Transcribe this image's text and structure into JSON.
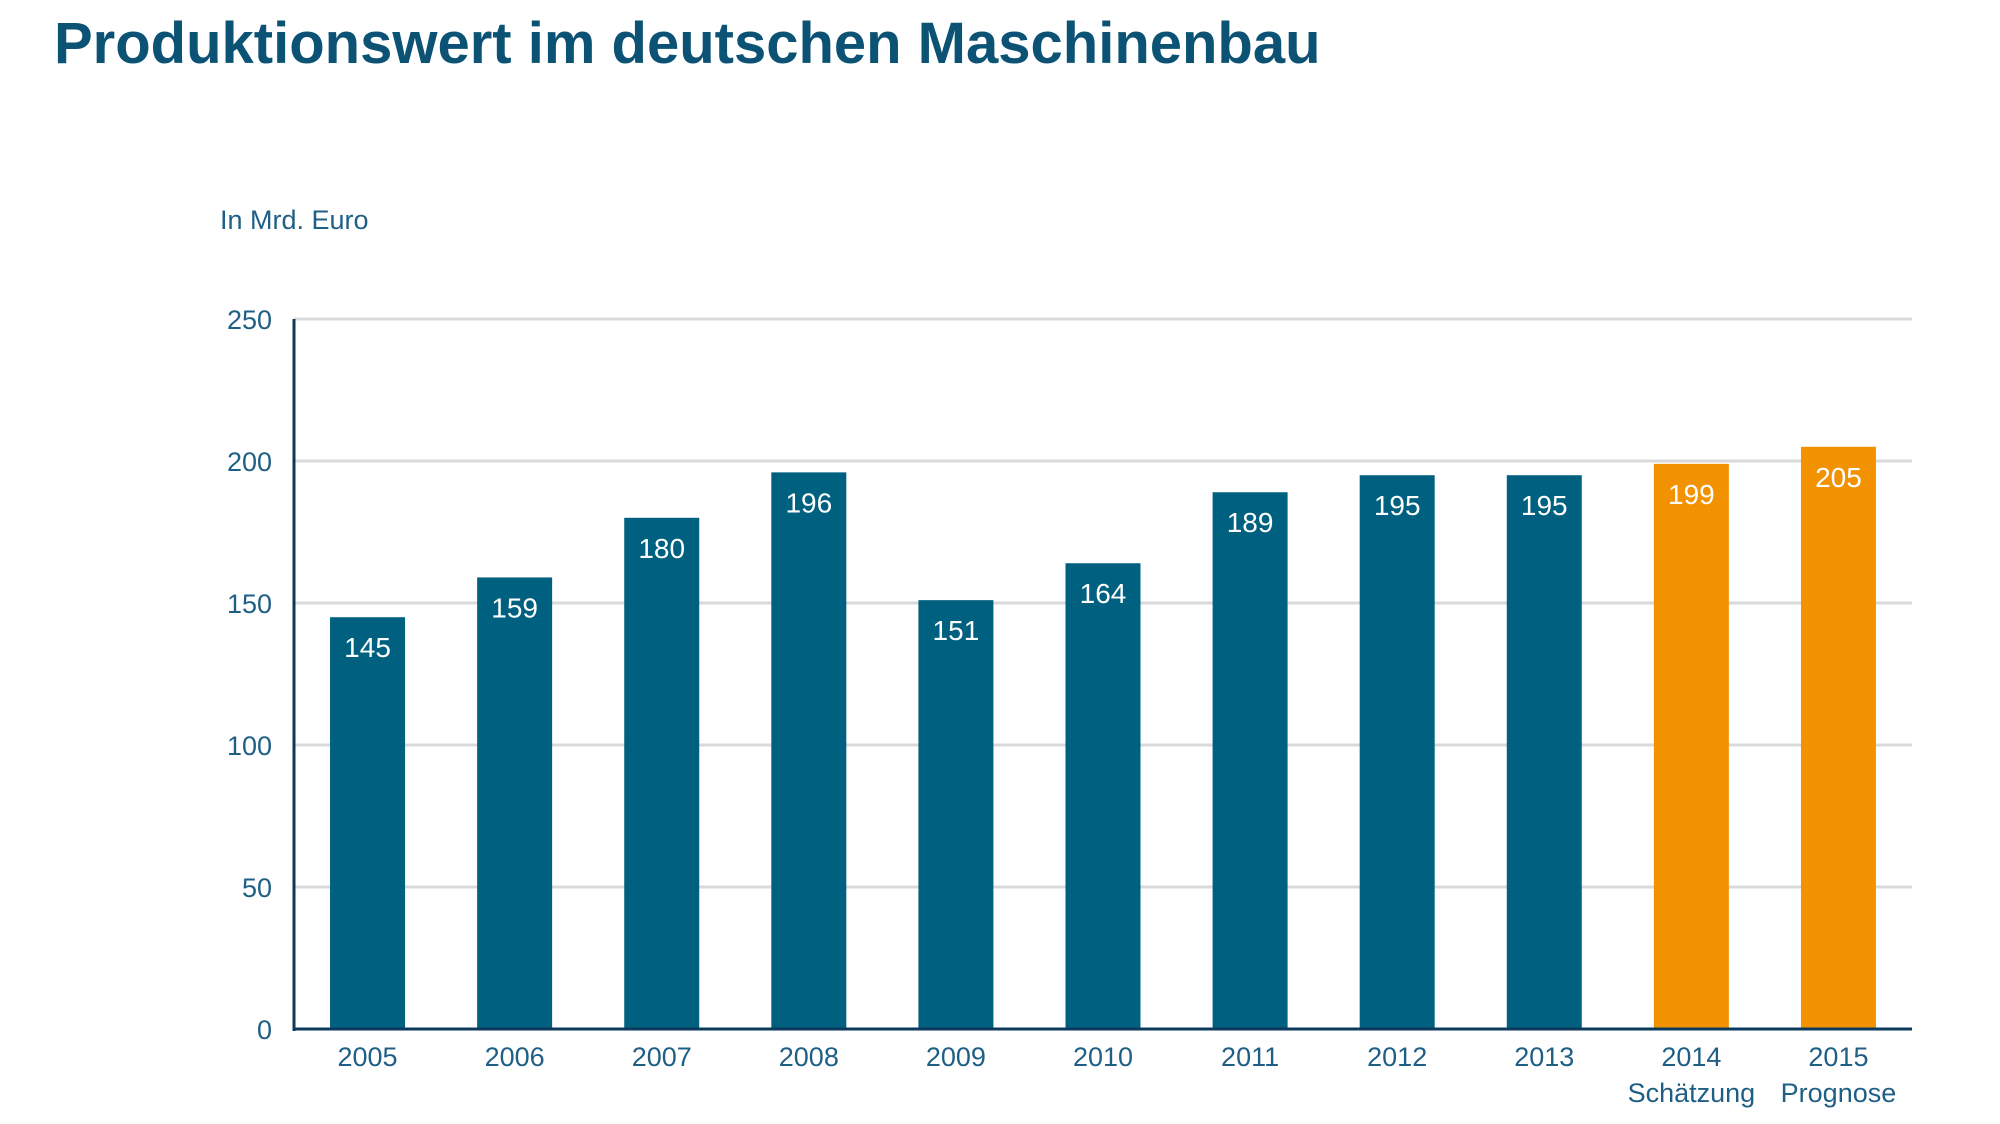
{
  "chart_data": {
    "type": "bar",
    "title": "Produktionswert im deutschen Maschinenbau",
    "unit_label": "In Mrd. Euro",
    "categories": [
      "2005",
      "2006",
      "2007",
      "2008",
      "2009",
      "2010",
      "2011",
      "2012",
      "2013",
      "2014",
      "2015"
    ],
    "category_sublabels": [
      "",
      "",
      "",
      "",
      "",
      "",
      "",
      "",
      "",
      "Schätzung",
      "Prognose"
    ],
    "values": [
      145,
      159,
      180,
      196,
      151,
      164,
      189,
      195,
      195,
      199,
      205
    ],
    "bar_colors": [
      "#006080",
      "#006080",
      "#006080",
      "#006080",
      "#006080",
      "#006080",
      "#006080",
      "#006080",
      "#006080",
      "#f39200",
      "#f39200"
    ],
    "value_labels": [
      "145",
      "159",
      "180",
      "196",
      "151",
      "164",
      "189",
      "195",
      "195",
      "199",
      "205"
    ],
    "ylim": [
      0,
      250
    ],
    "yticks": [
      0,
      50,
      100,
      150,
      200,
      250
    ],
    "grid": true,
    "legend": "none"
  },
  "colors": {
    "title": "#0b5275",
    "bar_actual": "#006080",
    "bar_estimate": "#f39200",
    "axis": "#0b3a5c",
    "grid": "#d9d9d9",
    "tick_text": "#1f5f86",
    "bar_label": "#ffffff"
  }
}
